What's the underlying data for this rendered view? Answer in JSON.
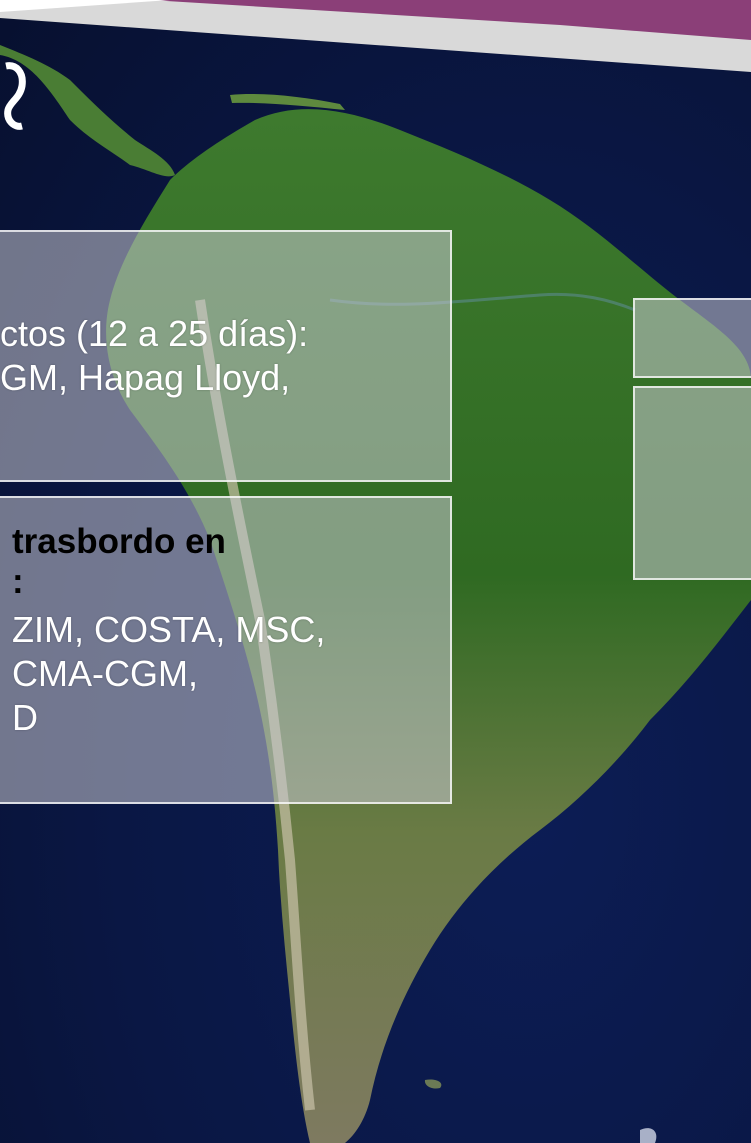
{
  "box1": {
    "line1": "ctos   (12 a 25 días):",
    "line2": "GM, Hapag Lloyd,"
  },
  "box2": {
    "line1": "trasbordo en",
    "line2": ":",
    "line3": "ZIM, COSTA, MSC,",
    "line4": "CMA-CGM,",
    "line5": "D"
  },
  "colors": {
    "header_band": "#8b3f78",
    "header_grey": "#d9d9d9",
    "ocean": "#0a1744",
    "land": "#3d6e2c",
    "box_fill": "#c8c8d2"
  }
}
